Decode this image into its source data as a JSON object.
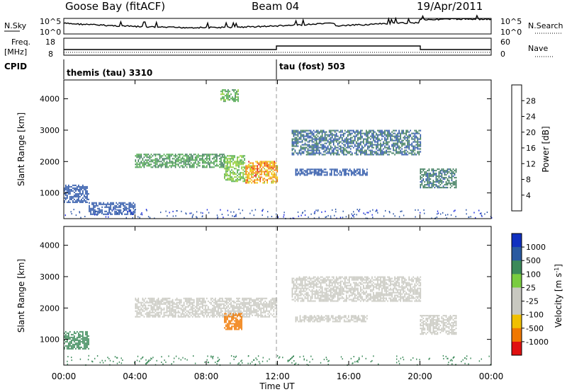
{
  "header": {
    "station": "Goose Bay (fitACF)",
    "beam": "Beam 04",
    "date": "19/Apr/2011"
  },
  "strips": {
    "nsky": {
      "label": "N.Sky",
      "left_ticks": [
        "10^5",
        "10^0"
      ],
      "right_ticks": [
        "10^5",
        "10^0"
      ],
      "right_label": "N.Search"
    },
    "freq": {
      "label_top": "Freq.",
      "label_bottom": "[MHz]",
      "left_ticks": [
        "18",
        "8"
      ],
      "right_ticks": [
        "60",
        "0"
      ],
      "right_label": "Nave"
    },
    "cpid": {
      "label": "CPID",
      "modes": [
        {
          "start_hour": 0,
          "text": "themis (tau) 3310"
        },
        {
          "start_hour": 12,
          "text": "tau (fost) 503"
        }
      ]
    }
  },
  "panels": {
    "power": {
      "ylabel": "Slant Range [km]",
      "yticks": [
        "1000",
        "2000",
        "3000",
        "4000"
      ],
      "cbar_label": "Power [dB]",
      "cbar_ticks": [
        "4",
        "8",
        "12",
        "16",
        "20",
        "24",
        "28"
      ],
      "cbar_colors": [
        "#1a28e0",
        "#2b55a8",
        "#3b7a5a",
        "#4aa848",
        "#8dcc30",
        "#f0c000",
        "#f07800",
        "#e01010"
      ]
    },
    "velocity": {
      "ylabel": "Slant Range [km]",
      "yticks": [
        "1000",
        "2000",
        "3000",
        "4000"
      ],
      "cbar_label": "Velocity [m s",
      "cbar_label_sup": "-1",
      "cbar_label_end": "]",
      "cbar_ticks": [
        "1000",
        "500",
        "100",
        "25",
        "-25",
        "-100",
        "-500",
        "-1000"
      ],
      "cbar_colors": [
        "#1030c0",
        "#2a5aa0",
        "#3c8a5a",
        "#7acc40",
        "#c8c8c0",
        "#c8c8c0",
        "#f0c000",
        "#f07800",
        "#e01010"
      ]
    }
  },
  "xaxis": {
    "label": "Time UT",
    "ticks": [
      "00:00",
      "04:00",
      "08:00",
      "12:00",
      "16:00",
      "20:00",
      "00:00"
    ]
  },
  "chart_data": {
    "type": "heatmap",
    "title": "Goose Bay (fitACF)  Beam 04  19/Apr/2011",
    "x_range_hours": [
      0,
      24
    ],
    "y_range_km": [
      180,
      4600
    ],
    "xlabel": "Time UT",
    "ylabel": "Slant Range [km]",
    "grid": false,
    "panels": [
      {
        "name": "Power [dB]",
        "scale": [
          0,
          30
        ],
        "regions": [
          {
            "t": [
              0.0,
              1.4
            ],
            "range": [
              680,
              1250
            ],
            "value": 5
          },
          {
            "t": [
              1.4,
              4.0
            ],
            "range": [
              300,
              700
            ],
            "value": 6
          },
          {
            "t": [
              4.0,
              9.0
            ],
            "range": [
              1800,
              2250
            ],
            "value": 12
          },
          {
            "t": [
              9.0,
              10.2
            ],
            "range": [
              1350,
              2200
            ],
            "value": 16
          },
          {
            "t": [
              10.2,
              12.0
            ],
            "range": [
              1300,
              2000
            ],
            "value": 24
          },
          {
            "t": [
              8.8,
              9.8
            ],
            "range": [
              3900,
              4300
            ],
            "value": 14
          },
          {
            "t": [
              12.8,
              20.0
            ],
            "range": [
              2200,
              3000
            ],
            "value": 8
          },
          {
            "t": [
              13.0,
              17.0
            ],
            "range": [
              1550,
              1750
            ],
            "value": 6
          },
          {
            "t": [
              20.0,
              22.0
            ],
            "range": [
              1150,
              1750
            ],
            "value": 9
          }
        ]
      },
      {
        "name": "Velocity [m s-1]",
        "scale": [
          -1000,
          1000
        ],
        "regions": [
          {
            "t": [
              0.0,
              1.4
            ],
            "range": [
              680,
              1250
            ],
            "value": 150
          },
          {
            "t": [
              4.0,
              12.0
            ],
            "range": [
              1700,
              2300
            ],
            "value": 0
          },
          {
            "t": [
              9.0,
              10.0
            ],
            "range": [
              1300,
              1800
            ],
            "value": -400
          },
          {
            "t": [
              12.8,
              20.0
            ],
            "range": [
              2200,
              3000
            ],
            "value": 0
          },
          {
            "t": [
              13.0,
              17.0
            ],
            "range": [
              1550,
              1750
            ],
            "value": 0
          },
          {
            "t": [
              20.0,
              22.0
            ],
            "range": [
              1150,
              1750
            ],
            "value": 0
          }
        ]
      }
    ],
    "cpid_changes": [
      {
        "hour": 0,
        "cpid": 3310
      },
      {
        "hour": 12,
        "cpid": 503
      }
    ]
  }
}
